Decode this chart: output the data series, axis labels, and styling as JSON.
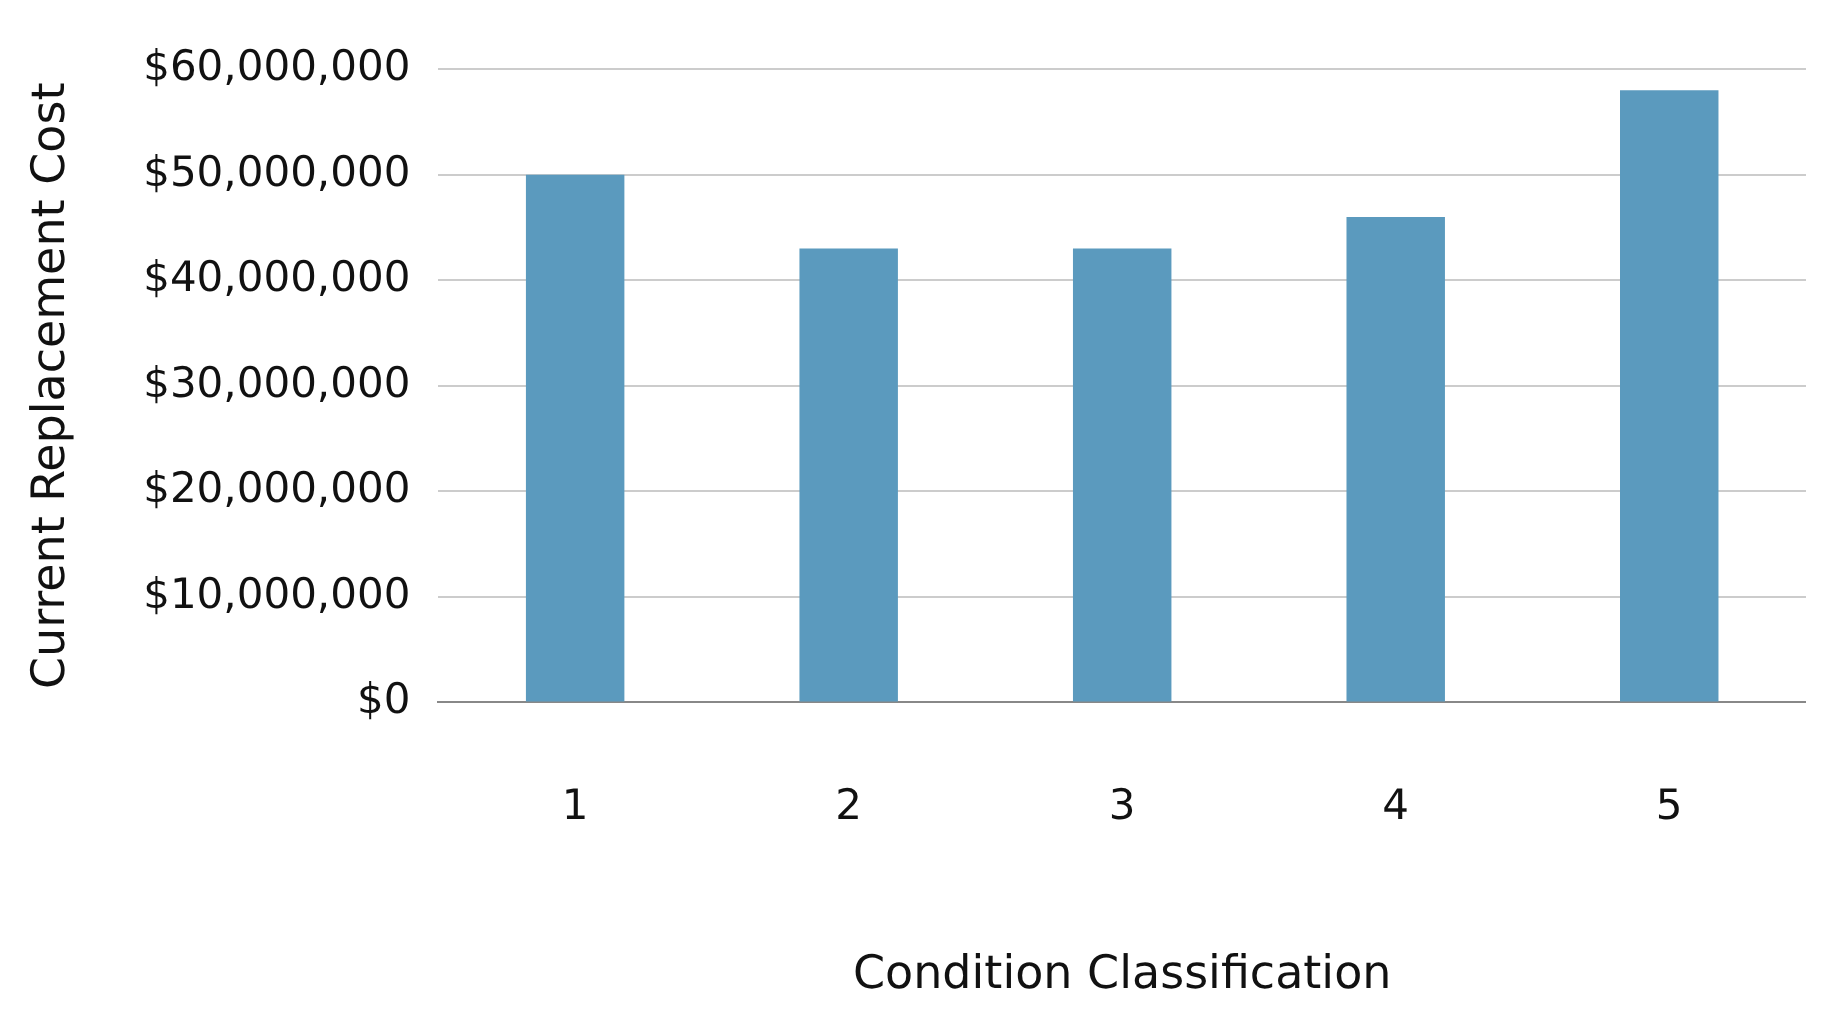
{
  "chart_data": {
    "type": "bar",
    "xlabel": "Condition Classification",
    "ylabel": "Current Replacement Cost",
    "categories": [
      "1",
      "2",
      "3",
      "4",
      "5"
    ],
    "values": [
      50000000,
      43000000,
      43000000,
      46000000,
      58000000
    ],
    "color": "#5b9abe",
    "ylim": [
      0,
      60000000
    ],
    "yticks": [
      {
        "value": 0,
        "label": "$0"
      },
      {
        "value": 10000000,
        "label": "$10,000,000"
      },
      {
        "value": 20000000,
        "label": "$20,000,000"
      },
      {
        "value": 30000000,
        "label": "$30,000,000"
      },
      {
        "value": 40000000,
        "label": "$40,000,000"
      },
      {
        "value": 50000000,
        "label": "$50,000,000"
      },
      {
        "value": 60000000,
        "label": "$60,000,000"
      }
    ],
    "grid": "y",
    "legend": false
  }
}
